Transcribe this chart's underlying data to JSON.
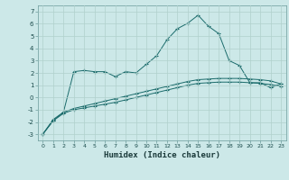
{
  "xlabel": "Humidex (Indice chaleur)",
  "xlim": [
    -0.5,
    23.5
  ],
  "ylim": [
    -3.5,
    7.5
  ],
  "xticks": [
    0,
    1,
    2,
    3,
    4,
    5,
    6,
    7,
    8,
    9,
    10,
    11,
    12,
    13,
    14,
    15,
    16,
    17,
    18,
    19,
    20,
    21,
    22,
    23
  ],
  "yticks": [
    -3,
    -2,
    -1,
    0,
    1,
    2,
    3,
    4,
    5,
    6,
    7
  ],
  "bg_color": "#cce8e8",
  "grid_color": "#b0d0cc",
  "line_color": "#1a6b6b",
  "line1_x": [
    0,
    1,
    2,
    3,
    4,
    5,
    6,
    7,
    8,
    9,
    10,
    11,
    12,
    13,
    14,
    15,
    16,
    17,
    18,
    19,
    20,
    21,
    22,
    23
  ],
  "line1_y": [
    -3.0,
    -1.9,
    -1.2,
    2.1,
    2.2,
    2.1,
    2.1,
    1.7,
    2.1,
    2.0,
    2.7,
    3.4,
    4.7,
    5.6,
    6.05,
    6.7,
    5.8,
    5.2,
    3.0,
    2.6,
    1.2,
    1.2,
    0.8,
    1.1
  ],
  "line2_x": [
    0,
    1,
    2,
    3,
    4,
    5,
    6,
    7,
    8,
    9,
    10,
    11,
    12,
    13,
    14,
    15,
    16,
    17,
    18,
    19,
    20,
    21,
    22,
    23
  ],
  "line2_y": [
    -3.0,
    -1.8,
    -1.2,
    -0.9,
    -0.7,
    -0.5,
    -0.3,
    -0.1,
    0.1,
    0.3,
    0.5,
    0.7,
    0.9,
    1.1,
    1.3,
    1.45,
    1.5,
    1.55,
    1.55,
    1.55,
    1.5,
    1.45,
    1.35,
    1.1
  ],
  "line3_x": [
    0,
    1,
    2,
    3,
    4,
    5,
    6,
    7,
    8,
    9,
    10,
    11,
    12,
    13,
    14,
    15,
    16,
    17,
    18,
    19,
    20,
    21,
    22,
    23
  ],
  "line3_y": [
    -3.0,
    -1.9,
    -1.3,
    -1.0,
    -0.85,
    -0.7,
    -0.55,
    -0.4,
    -0.2,
    0.0,
    0.2,
    0.4,
    0.6,
    0.8,
    1.0,
    1.15,
    1.2,
    1.25,
    1.25,
    1.25,
    1.2,
    1.15,
    1.05,
    0.9
  ],
  "marker": "+",
  "markersize": 3.5,
  "linewidth": 0.7
}
